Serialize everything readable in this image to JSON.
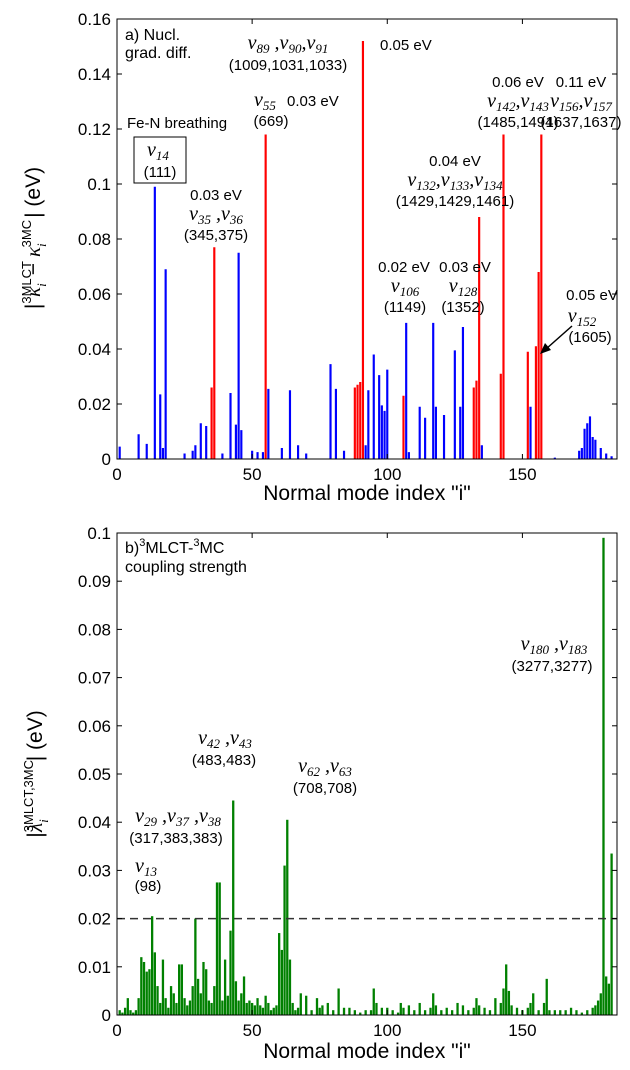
{
  "chart_data": [
    {
      "type": "bar",
      "panel_label": "a) Nucl.",
      "panel_label_line2": "grad. diff.",
      "xlabel": "Normal mode index \"i\"",
      "ylabel": "|κ_i^3MLCT − κ_i^3MC| (eV)",
      "ylabel_parts": {
        "bar": "|",
        "kappa": "κ",
        "sub": "i",
        "sup1": "3",
        "sup1b": "MLCT",
        "minus": "−",
        "sup2": "3",
        "sup2b": "MC",
        "unit": "| (eV)"
      },
      "xlim": [
        0,
        185
      ],
      "ylim": [
        0,
        0.16
      ],
      "xticks": [
        0,
        50,
        100,
        150
      ],
      "yticks": [
        "0",
        "0.02",
        "0.04",
        "0.06",
        "0.08",
        "0.1",
        "0.12",
        "0.14",
        "0.16"
      ],
      "colors": {
        "default": "#0000ff",
        "highlight": "#ff0000"
      },
      "bars": [
        {
          "x": 1,
          "y": 0.0045,
          "c": "b"
        },
        {
          "x": 8,
          "y": 0.009,
          "c": "b"
        },
        {
          "x": 11,
          "y": 0.0055,
          "c": "b"
        },
        {
          "x": 14,
          "y": 0.099,
          "c": "b"
        },
        {
          "x": 16,
          "y": 0.0235,
          "c": "b"
        },
        {
          "x": 17,
          "y": 0.004,
          "c": "b"
        },
        {
          "x": 18,
          "y": 0.069,
          "c": "b"
        },
        {
          "x": 25,
          "y": 0.002,
          "c": "b"
        },
        {
          "x": 28,
          "y": 0.003,
          "c": "b"
        },
        {
          "x": 29,
          "y": 0.005,
          "c": "b"
        },
        {
          "x": 31,
          "y": 0.013,
          "c": "b"
        },
        {
          "x": 33,
          "y": 0.012,
          "c": "b"
        },
        {
          "x": 35,
          "y": 0.026,
          "c": "r"
        },
        {
          "x": 36,
          "y": 0.077,
          "c": "r"
        },
        {
          "x": 39,
          "y": 0.002,
          "c": "b"
        },
        {
          "x": 42,
          "y": 0.024,
          "c": "b"
        },
        {
          "x": 44,
          "y": 0.0125,
          "c": "b"
        },
        {
          "x": 45,
          "y": 0.075,
          "c": "b"
        },
        {
          "x": 46,
          "y": 0.0105,
          "c": "b"
        },
        {
          "x": 50,
          "y": 0.003,
          "c": "b"
        },
        {
          "x": 52,
          "y": 0.0025,
          "c": "b"
        },
        {
          "x": 54,
          "y": 0.0025,
          "c": "b"
        },
        {
          "x": 55,
          "y": 0.118,
          "c": "r"
        },
        {
          "x": 56,
          "y": 0.0255,
          "c": "b"
        },
        {
          "x": 61,
          "y": 0.004,
          "c": "b"
        },
        {
          "x": 64,
          "y": 0.025,
          "c": "b"
        },
        {
          "x": 67,
          "y": 0.005,
          "c": "b"
        },
        {
          "x": 70,
          "y": 0.002,
          "c": "b"
        },
        {
          "x": 79,
          "y": 0.0345,
          "c": "b"
        },
        {
          "x": 81,
          "y": 0.0255,
          "c": "b"
        },
        {
          "x": 84,
          "y": 0.003,
          "c": "b"
        },
        {
          "x": 88,
          "y": 0.026,
          "c": "r"
        },
        {
          "x": 89,
          "y": 0.027,
          "c": "r"
        },
        {
          "x": 90,
          "y": 0.028,
          "c": "r"
        },
        {
          "x": 91,
          "y": 0.152,
          "c": "r"
        },
        {
          "x": 92,
          "y": 0.005,
          "c": "b"
        },
        {
          "x": 93,
          "y": 0.025,
          "c": "b"
        },
        {
          "x": 95,
          "y": 0.038,
          "c": "b"
        },
        {
          "x": 97,
          "y": 0.0305,
          "c": "b"
        },
        {
          "x": 98,
          "y": 0.0195,
          "c": "b"
        },
        {
          "x": 99,
          "y": 0.0175,
          "c": "b"
        },
        {
          "x": 100,
          "y": 0.0325,
          "c": "b"
        },
        {
          "x": 106,
          "y": 0.023,
          "c": "r"
        },
        {
          "x": 107,
          "y": 0.0495,
          "c": "b"
        },
        {
          "x": 108,
          "y": 0.0025,
          "c": "b"
        },
        {
          "x": 112,
          "y": 0.019,
          "c": "b"
        },
        {
          "x": 114,
          "y": 0.015,
          "c": "b"
        },
        {
          "x": 117,
          "y": 0.0495,
          "c": "b"
        },
        {
          "x": 118,
          "y": 0.019,
          "c": "b"
        },
        {
          "x": 121,
          "y": 0.016,
          "c": "b"
        },
        {
          "x": 125,
          "y": 0.0395,
          "c": "b"
        },
        {
          "x": 127,
          "y": 0.019,
          "c": "b"
        },
        {
          "x": 128,
          "y": 0.048,
          "c": "b"
        },
        {
          "x": 132,
          "y": 0.026,
          "c": "r"
        },
        {
          "x": 133,
          "y": 0.0285,
          "c": "r"
        },
        {
          "x": 134,
          "y": 0.088,
          "c": "r"
        },
        {
          "x": 135,
          "y": 0.005,
          "c": "b"
        },
        {
          "x": 142,
          "y": 0.031,
          "c": "r"
        },
        {
          "x": 143,
          "y": 0.118,
          "c": "r"
        },
        {
          "x": 152,
          "y": 0.039,
          "c": "r"
        },
        {
          "x": 153,
          "y": 0.019,
          "c": "b"
        },
        {
          "x": 155,
          "y": 0.041,
          "c": "r"
        },
        {
          "x": 156,
          "y": 0.068,
          "c": "r"
        },
        {
          "x": 157,
          "y": 0.118,
          "c": "r"
        },
        {
          "x": 162,
          "y": 0.0005,
          "c": "b"
        },
        {
          "x": 171,
          "y": 0.003,
          "c": "b"
        },
        {
          "x": 172,
          "y": 0.004,
          "c": "b"
        },
        {
          "x": 173,
          "y": 0.011,
          "c": "b"
        },
        {
          "x": 174,
          "y": 0.013,
          "c": "b"
        },
        {
          "x": 175,
          "y": 0.0155,
          "c": "b"
        },
        {
          "x": 176,
          "y": 0.008,
          "c": "b"
        },
        {
          "x": 177,
          "y": 0.007,
          "c": "b"
        },
        {
          "x": 179,
          "y": 0.004,
          "c": "b"
        },
        {
          "x": 181,
          "y": 0.002,
          "c": "b"
        },
        {
          "x": 183,
          "y": 0.001,
          "c": "b"
        }
      ],
      "annotations": [
        {
          "id": "fe-n",
          "lines": [
            "Fe-N breathing"
          ]
        },
        {
          "id": "nu14",
          "lines": [
            "ν14",
            "(111)"
          ],
          "boxed": true
        },
        {
          "id": "nu35",
          "lines": [
            "0.03 eV",
            "ν35 ,ν36",
            "(345,375)"
          ]
        },
        {
          "id": "nu55",
          "lines": [
            "ν55  0.03 eV",
            "(669)"
          ]
        },
        {
          "id": "nu89",
          "lines": [
            "ν89 ,ν90,ν91",
            "(1009,1031,1033)"
          ]
        },
        {
          "id": "e91",
          "lines": [
            "0.05 eV"
          ]
        },
        {
          "id": "nu106",
          "lines": [
            "0.02 eV",
            "ν106",
            "(1149)"
          ]
        },
        {
          "id": "nu128",
          "lines": [
            "0.03 eV",
            "ν128",
            "(1352)"
          ]
        },
        {
          "id": "nu132",
          "lines": [
            "0.04 eV",
            "ν132,ν133,ν134",
            "(1429,1429,1461)"
          ]
        },
        {
          "id": "nu142",
          "lines": [
            "0.06 eV",
            "ν142,ν143",
            "(1485,1494)"
          ]
        },
        {
          "id": "nu156",
          "lines": [
            "0.11 eV",
            "ν156,ν157",
            "(1637,1637)"
          ]
        },
        {
          "id": "nu152",
          "lines": [
            "0.05 eV",
            "ν152",
            "(1605)"
          ]
        }
      ]
    },
    {
      "type": "bar",
      "panel_label_sup1": "3",
      "panel_label_mid": "MLCT-",
      "panel_label_sup2": "3",
      "panel_label_end": "MC",
      "panel_label_prefix": "b)",
      "panel_label_line2": "coupling strength",
      "xlabel": "Normal mode index \"i\"",
      "ylabel": "|λ_i^3MLCT,3MC| (eV)",
      "ylabel_parts": {
        "bar": "|",
        "lambda": "λ",
        "sub": "i",
        "sup1": "3",
        "sup1b": "MLCT,",
        "sup2": "3",
        "sup2b": "MC",
        "unit": "| (eV)"
      },
      "xlim": [
        0,
        185
      ],
      "ylim": [
        0,
        0.1
      ],
      "xticks": [
        0,
        50,
        100,
        150
      ],
      "yticks": [
        "0",
        "0.01",
        "0.02",
        "0.03",
        "0.04",
        "0.05",
        "0.06",
        "0.07",
        "0.08",
        "0.09",
        "0.1"
      ],
      "threshold": 0.02,
      "colors": {
        "bar": "#008000"
      },
      "bars": [
        [
          1,
          0.001
        ],
        [
          2,
          0.0005
        ],
        [
          3,
          0.0015
        ],
        [
          4,
          0.0035
        ],
        [
          5,
          0.001
        ],
        [
          6,
          0.0005
        ],
        [
          7,
          0.001
        ],
        [
          8,
          0.0035
        ],
        [
          9,
          0.012
        ],
        [
          10,
          0.011
        ],
        [
          11,
          0.009
        ],
        [
          12,
          0.0095
        ],
        [
          13,
          0.0205
        ],
        [
          14,
          0.013
        ],
        [
          15,
          0.006
        ],
        [
          16,
          0.0025
        ],
        [
          17,
          0.0115
        ],
        [
          18,
          0.0035
        ],
        [
          19,
          0.0015
        ],
        [
          20,
          0.006
        ],
        [
          21,
          0.0045
        ],
        [
          22,
          0.0025
        ],
        [
          23,
          0.0105
        ],
        [
          24,
          0.0105
        ],
        [
          25,
          0.0035
        ],
        [
          26,
          0.002
        ],
        [
          27,
          0.003
        ],
        [
          28,
          0.006
        ],
        [
          29,
          0.02
        ],
        [
          30,
          0.0075
        ],
        [
          31,
          0.0045
        ],
        [
          32,
          0.011
        ],
        [
          33,
          0.0095
        ],
        [
          34,
          0.003
        ],
        [
          35,
          0.0025
        ],
        [
          36,
          0.006
        ],
        [
          37,
          0.0275
        ],
        [
          38,
          0.0275
        ],
        [
          39,
          0.003
        ],
        [
          40,
          0.0115
        ],
        [
          41,
          0.004
        ],
        [
          42,
          0.0175
        ],
        [
          43,
          0.0445
        ],
        [
          44,
          0.007
        ],
        [
          45,
          0.003
        ],
        [
          46,
          0.0045
        ],
        [
          47,
          0.008
        ],
        [
          48,
          0.0025
        ],
        [
          49,
          0.003
        ],
        [
          50,
          0.0025
        ],
        [
          51,
          0.002
        ],
        [
          52,
          0.0035
        ],
        [
          53,
          0.002
        ],
        [
          54,
          0.0015
        ],
        [
          55,
          0.004
        ],
        [
          56,
          0.0025
        ],
        [
          57,
          0.001
        ],
        [
          58,
          0.0015
        ],
        [
          59,
          0.002
        ],
        [
          60,
          0.017
        ],
        [
          61,
          0.0135
        ],
        [
          62,
          0.031
        ],
        [
          63,
          0.0405
        ],
        [
          64,
          0.0115
        ],
        [
          65,
          0.0025
        ],
        [
          66,
          0.001
        ],
        [
          67,
          0.0015
        ],
        [
          68,
          0.0045
        ],
        [
          70,
          0.004
        ],
        [
          72,
          0.001
        ],
        [
          74,
          0.0035
        ],
        [
          75,
          0.0015
        ],
        [
          76,
          0.002
        ],
        [
          78,
          0.0025
        ],
        [
          80,
          0.001
        ],
        [
          82,
          0.0055
        ],
        [
          84,
          0.0015
        ],
        [
          86,
          0.0015
        ],
        [
          88,
          0.001
        ],
        [
          90,
          0.0005
        ],
        [
          92,
          0.001
        ],
        [
          94,
          0.001
        ],
        [
          95,
          0.0055
        ],
        [
          96,
          0.0025
        ],
        [
          98,
          0.0015
        ],
        [
          100,
          0.0015
        ],
        [
          102,
          0.001
        ],
        [
          104,
          0.0005
        ],
        [
          105,
          0.0025
        ],
        [
          106,
          0.0015
        ],
        [
          108,
          0.002
        ],
        [
          110,
          0.001
        ],
        [
          112,
          0.0025
        ],
        [
          114,
          0.001
        ],
        [
          116,
          0.0015
        ],
        [
          117,
          0.0045
        ],
        [
          118,
          0.002
        ],
        [
          120,
          0.001
        ],
        [
          122,
          0.0015
        ],
        [
          124,
          0.001
        ],
        [
          126,
          0.0025
        ],
        [
          128,
          0.002
        ],
        [
          130,
          0.001
        ],
        [
          132,
          0.0015
        ],
        [
          133,
          0.0035
        ],
        [
          134,
          0.002
        ],
        [
          136,
          0.0015
        ],
        [
          138,
          0.001
        ],
        [
          140,
          0.0035
        ],
        [
          142,
          0.0025
        ],
        [
          143,
          0.0055
        ],
        [
          144,
          0.0105
        ],
        [
          145,
          0.005
        ],
        [
          146,
          0.002
        ],
        [
          148,
          0.0015
        ],
        [
          150,
          0.001
        ],
        [
          152,
          0.0015
        ],
        [
          153,
          0.0025
        ],
        [
          154,
          0.0045
        ],
        [
          156,
          0.001
        ],
        [
          158,
          0.0025
        ],
        [
          159,
          0.0075
        ],
        [
          160,
          0.001
        ],
        [
          162,
          0.001
        ],
        [
          164,
          0.001
        ],
        [
          166,
          0.001
        ],
        [
          168,
          0.0015
        ],
        [
          170,
          0.001
        ],
        [
          172,
          0.0005
        ],
        [
          174,
          0.001
        ],
        [
          176,
          0.0015
        ],
        [
          177,
          0.002
        ],
        [
          178,
          0.003
        ],
        [
          179,
          0.0045
        ],
        [
          180,
          0.099
        ],
        [
          181,
          0.008
        ],
        [
          182,
          0.0065
        ],
        [
          183,
          0.0335
        ]
      ],
      "annotations": [
        {
          "id": "nu13",
          "lines": [
            "ν13",
            "(98)"
          ]
        },
        {
          "id": "nu29",
          "lines": [
            "ν29 ,ν37 ,ν38",
            "(317,383,383)"
          ]
        },
        {
          "id": "nu42",
          "lines": [
            "ν42 ,ν43",
            "(483,483)"
          ]
        },
        {
          "id": "nu62",
          "lines": [
            "ν62 ,ν63",
            "(708,708)"
          ]
        },
        {
          "id": "nu180",
          "lines": [
            "ν180 ,ν183",
            "(3277,3277)"
          ]
        }
      ]
    }
  ]
}
